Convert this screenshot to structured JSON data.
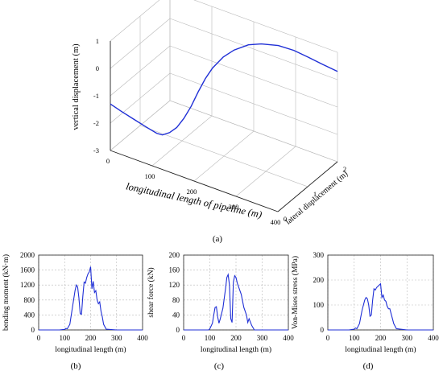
{
  "figure_labels": [
    "(a)",
    "(b)",
    "(c)",
    "(d)"
  ],
  "colors": {
    "curve": "#1f2fd6",
    "grid": "#b9b9b9",
    "axis": "#222222"
  },
  "chart_data": [
    {
      "type": "line",
      "panel": "(a)",
      "projection": "3d",
      "xlabel": "longitudinal length of pipeline (m)",
      "ylabel": "lateral displacement (m)",
      "zlabel": "vertical displacement (m)",
      "x_ticks": [
        "0",
        "100",
        "200",
        "300",
        "400"
      ],
      "y_ticks": [
        "0",
        "1",
        "2"
      ],
      "z_ticks": [
        "-3",
        "-2",
        "-1",
        "0",
        "1"
      ],
      "xlim": [
        0,
        400
      ],
      "ylim": [
        0,
        2
      ],
      "zlim": [
        -3,
        1
      ],
      "grid": true,
      "series": [
        {
          "points": [
            [
              0,
              0,
              -1.3
            ],
            [
              25,
              0.02,
              -1.45
            ],
            [
              50,
              0.05,
              -1.6
            ],
            [
              80,
              0.1,
              -1.8
            ],
            [
              100,
              0.15,
              -1.95
            ],
            [
              110,
              0.2,
              -2.0
            ],
            [
              120,
              0.3,
              -1.95
            ],
            [
              130,
              0.4,
              -1.8
            ],
            [
              140,
              0.5,
              -1.5
            ],
            [
              150,
              0.6,
              -1.1
            ],
            [
              160,
              0.7,
              -0.6
            ],
            [
              170,
              0.8,
              -0.15
            ],
            [
              180,
              0.9,
              0.2
            ],
            [
              195,
              1.05,
              0.55
            ],
            [
              210,
              1.2,
              0.75
            ],
            [
              230,
              1.4,
              0.87
            ],
            [
              250,
              1.55,
              0.88
            ],
            [
              280,
              1.7,
              0.85
            ],
            [
              310,
              1.8,
              0.75
            ],
            [
              340,
              1.87,
              0.6
            ],
            [
              370,
              1.93,
              0.45
            ],
            [
              400,
              2.0,
              0.3
            ]
          ]
        }
      ]
    },
    {
      "type": "line",
      "panel": "(b)",
      "xlabel": "longitudinal length (m)",
      "ylabel": "bending moment (kN·m)",
      "x_ticks": [
        "0",
        "100",
        "200",
        "300",
        "400"
      ],
      "y_ticks": [
        "0",
        "400",
        "800",
        "1200",
        "1600",
        "2000"
      ],
      "xlim": [
        0,
        400
      ],
      "ylim": [
        0,
        2000
      ],
      "grid": true,
      "series": [
        {
          "x": [
            0,
            80,
            100,
            105,
            110,
            120,
            130,
            140,
            145,
            150,
            155,
            160,
            165,
            170,
            175,
            180,
            185,
            190,
            195,
            200,
            205,
            210,
            215,
            220,
            225,
            230,
            235,
            240,
            245,
            250,
            260,
            300,
            400
          ],
          "y": [
            0,
            0,
            15,
            40,
            30,
            150,
            600,
            1050,
            1200,
            1150,
            850,
            430,
            420,
            900,
            1280,
            1250,
            1400,
            1500,
            1550,
            1690,
            1100,
            1300,
            1000,
            1050,
            800,
            700,
            750,
            500,
            350,
            150,
            20,
            0,
            0
          ]
        }
      ]
    },
    {
      "type": "line",
      "panel": "(c)",
      "xlabel": "longitudinal length (m)",
      "ylabel": "shear force (kN)",
      "x_ticks": [
        "0",
        "100",
        "200",
        "300",
        "400"
      ],
      "y_ticks": [
        "0",
        "40",
        "80",
        "120",
        "160",
        "200"
      ],
      "xlim": [
        0,
        400
      ],
      "ylim": [
        0,
        200
      ],
      "grid": true,
      "series": [
        {
          "x": [
            0,
            95,
            100,
            110,
            115,
            120,
            125,
            130,
            135,
            140,
            150,
            160,
            165,
            170,
            175,
            180,
            185,
            190,
            195,
            200,
            205,
            210,
            220,
            230,
            240,
            245,
            250,
            260,
            270,
            300,
            400
          ],
          "y": [
            0,
            0,
            3,
            18,
            40,
            60,
            62,
            35,
            18,
            30,
            58,
            110,
            140,
            148,
            120,
            30,
            20,
            128,
            145,
            140,
            125,
            115,
            95,
            60,
            40,
            20,
            30,
            12,
            0,
            0,
            0
          ]
        }
      ]
    },
    {
      "type": "line",
      "panel": "(d)",
      "xlabel": "longitudinal length (m)",
      "ylabel": "Von-Mises stress (MPa)",
      "x_ticks": [
        "0",
        "100",
        "200",
        "300",
        "400"
      ],
      "y_ticks": [
        "0",
        "100",
        "200",
        "300"
      ],
      "xlim": [
        0,
        400
      ],
      "ylim": [
        0,
        300
      ],
      "grid": true,
      "series": [
        {
          "x": [
            0,
            80,
            100,
            105,
            110,
            120,
            130,
            140,
            145,
            150,
            155,
            160,
            165,
            170,
            175,
            180,
            185,
            190,
            195,
            200,
            205,
            210,
            215,
            220,
            225,
            230,
            235,
            240,
            245,
            250,
            260,
            300,
            400
          ],
          "y": [
            0,
            0,
            3,
            8,
            5,
            25,
            80,
            120,
            130,
            125,
            100,
            55,
            60,
            120,
            165,
            160,
            170,
            175,
            180,
            185,
            130,
            140,
            120,
            115,
            95,
            85,
            85,
            65,
            45,
            25,
            5,
            0,
            0
          ]
        }
      ]
    }
  ]
}
